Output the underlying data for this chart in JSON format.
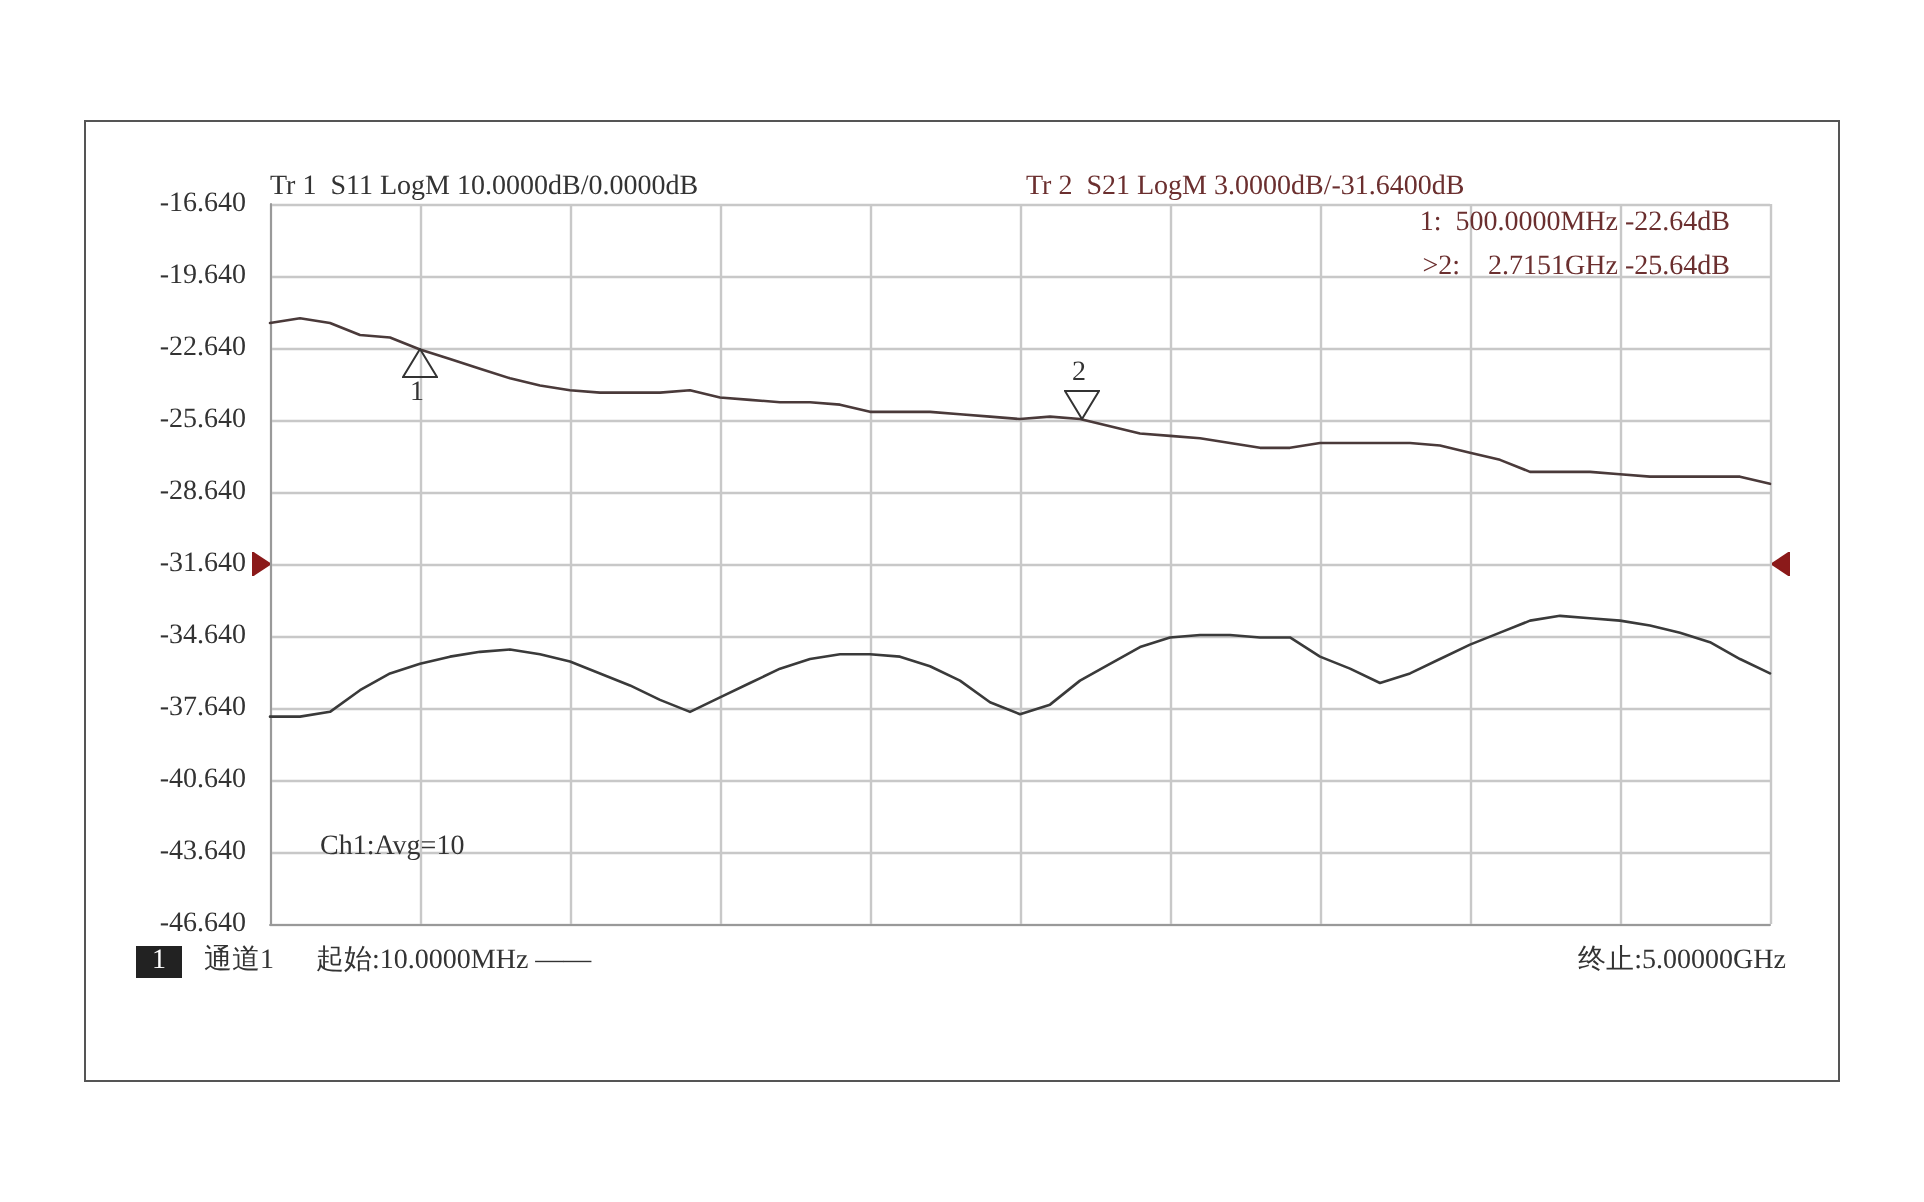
{
  "chart_data": {
    "type": "line",
    "categories": [
      null,
      null,
      null,
      null,
      null,
      null,
      null,
      null,
      null,
      null,
      null,
      null,
      null,
      null,
      null,
      null,
      null,
      null,
      null,
      null,
      null,
      null,
      null,
      null,
      null,
      null,
      null,
      null,
      null,
      null,
      null,
      null,
      null,
      null,
      null,
      null,
      null,
      null,
      null,
      null,
      null,
      null,
      null,
      null,
      null,
      null,
      null,
      null,
      null,
      null,
      null
    ],
    "series": [
      {
        "color": "#4a3a3a",
        "values": [
          -21.6,
          -21.4,
          -21.6,
          -22.1,
          -22.2,
          -22.7,
          -23.1,
          -23.5,
          -23.9,
          -24.2,
          -24.4,
          -24.5,
          -24.5,
          -24.5,
          -24.4,
          -24.7,
          -24.8,
          -24.9,
          -24.9,
          -25.0,
          -25.3,
          -25.3,
          -25.3,
          -25.4,
          -25.5,
          -25.6,
          -25.5,
          -25.6,
          -25.9,
          -26.2,
          -26.3,
          -26.4,
          -26.6,
          -26.8,
          -26.8,
          -26.6,
          -26.6,
          -26.6,
          -26.6,
          -26.7,
          -27.0,
          -27.3,
          -27.8,
          -27.8,
          -27.8,
          -27.9,
          -28.0,
          -28.0,
          -28.0,
          -28.0,
          -28.3
        ]
      },
      {
        "color": "#3a3a3a",
        "values": [
          -38.0,
          -38.0,
          -37.8,
          -36.9,
          -36.2,
          -35.8,
          -35.5,
          -35.3,
          -35.2,
          -35.4,
          -35.7,
          -36.2,
          -36.7,
          -37.3,
          -37.8,
          -37.2,
          -36.6,
          -36.0,
          -35.6,
          -35.4,
          -35.4,
          -35.5,
          -35.9,
          -36.5,
          -37.4,
          -37.9,
          -37.5,
          -36.5,
          -35.8,
          -35.1,
          -34.7,
          -34.6,
          -34.6,
          -34.7,
          -34.7,
          -35.5,
          -36.0,
          -36.6,
          -36.2,
          -35.6,
          -35.0,
          -34.5,
          -34.0,
          -33.8,
          -33.9,
          -34.0,
          -34.2,
          -34.5,
          -34.9,
          -35.6,
          -36.2
        ]
      }
    ],
    "ylim": [
      -46.64,
      -16.64
    ],
    "yticks": [
      {
        "value": -46.64,
        "label": "-46.640"
      },
      {
        "value": -43.64,
        "label": "-43.640"
      },
      {
        "value": -40.64,
        "label": "-40.640"
      },
      {
        "value": -37.64,
        "label": "-37.640"
      },
      {
        "value": -34.64,
        "label": "-34.640"
      },
      {
        "value": -31.64,
        "label": "-31.640"
      },
      {
        "value": -28.64,
        "label": "-28.640"
      },
      {
        "value": -25.64,
        "label": "-25.640"
      },
      {
        "value": -22.64,
        "label": "-22.640"
      },
      {
        "value": -19.64,
        "label": "-19.640"
      },
      {
        "value": -16.64,
        "label": "-16.640"
      }
    ],
    "grid": true,
    "tick_labels": "y",
    "marker": "none",
    "line_style": "solid",
    "annotations": [
      "Tr 1  S11 LogM 10.0000dB/0.0000dB",
      "Tr 2  S21 LogM 3.0000dB/-31.6400dB",
      "1:  500.0000MHz -22.64dB",
      ">2:    2.7151GHz -25.64dB",
      "Ch1:Avg=10",
      "1",
      "通道1",
      "起始:10.0000MHz ——",
      "终止:5.00000GHz",
      {
        "text": "1",
        "y": -22.64
      },
      {
        "text": "2",
        "y": -25.64
      }
    ]
  }
}
